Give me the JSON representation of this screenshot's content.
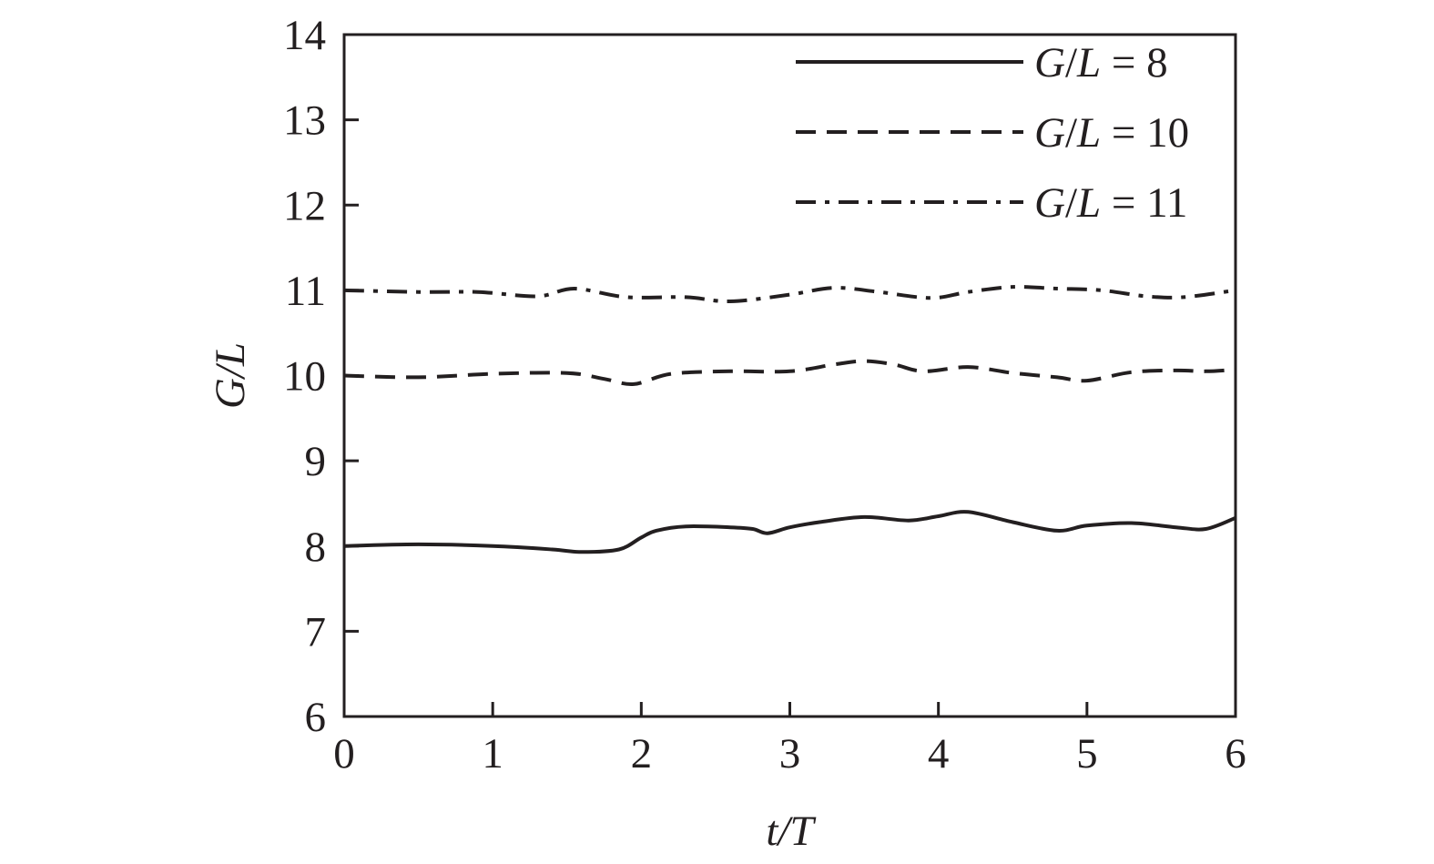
{
  "chart_data": {
    "type": "line",
    "xlabel": "t/T",
    "ylabel": "G/L",
    "xlim": [
      0,
      6
    ],
    "ylim": [
      6,
      14
    ],
    "xticks": [
      "0",
      "1",
      "2",
      "3",
      "4",
      "5",
      "6"
    ],
    "yticks": [
      "6",
      "7",
      "8",
      "9",
      "10",
      "11",
      "12",
      "13",
      "14"
    ],
    "grid": false,
    "legend_position": "top-right",
    "series": [
      {
        "name": "G/L = 8",
        "style": "solid",
        "x": [
          0,
          0.5,
          1.0,
          1.4,
          1.6,
          1.85,
          2.0,
          2.1,
          2.3,
          2.6,
          2.75,
          2.85,
          3.0,
          3.2,
          3.5,
          3.8,
          4.0,
          4.2,
          4.5,
          4.8,
          5.0,
          5.3,
          5.6,
          5.8,
          6.0
        ],
        "y": [
          8.0,
          8.02,
          8.0,
          7.96,
          7.93,
          7.96,
          8.1,
          8.18,
          8.23,
          8.22,
          8.2,
          8.15,
          8.22,
          8.28,
          8.34,
          8.3,
          8.35,
          8.4,
          8.28,
          8.18,
          8.24,
          8.27,
          8.22,
          8.2,
          8.33
        ]
      },
      {
        "name": "G/L = 10",
        "style": "dashed",
        "x": [
          0,
          0.5,
          1.0,
          1.5,
          1.75,
          1.95,
          2.2,
          2.6,
          3.0,
          3.3,
          3.5,
          3.7,
          3.9,
          4.2,
          4.5,
          4.8,
          5.0,
          5.3,
          5.6,
          5.8,
          6.0
        ],
        "y": [
          10.0,
          9.98,
          10.02,
          10.03,
          9.96,
          9.9,
          10.02,
          10.05,
          10.05,
          10.13,
          10.17,
          10.13,
          10.05,
          10.1,
          10.03,
          9.98,
          9.94,
          10.04,
          10.06,
          10.05,
          10.07
        ]
      },
      {
        "name": "G/L = 11",
        "style": "dashdot",
        "x": [
          0,
          0.5,
          0.9,
          1.3,
          1.55,
          1.9,
          2.3,
          2.6,
          3.0,
          3.3,
          3.6,
          3.95,
          4.2,
          4.5,
          4.8,
          5.1,
          5.4,
          5.65,
          6.0
        ],
        "y": [
          11.0,
          10.98,
          10.98,
          10.93,
          11.02,
          10.92,
          10.92,
          10.87,
          10.95,
          11.03,
          10.98,
          10.91,
          10.98,
          11.04,
          11.02,
          11.0,
          10.93,
          10.92,
          11.0
        ]
      }
    ]
  }
}
